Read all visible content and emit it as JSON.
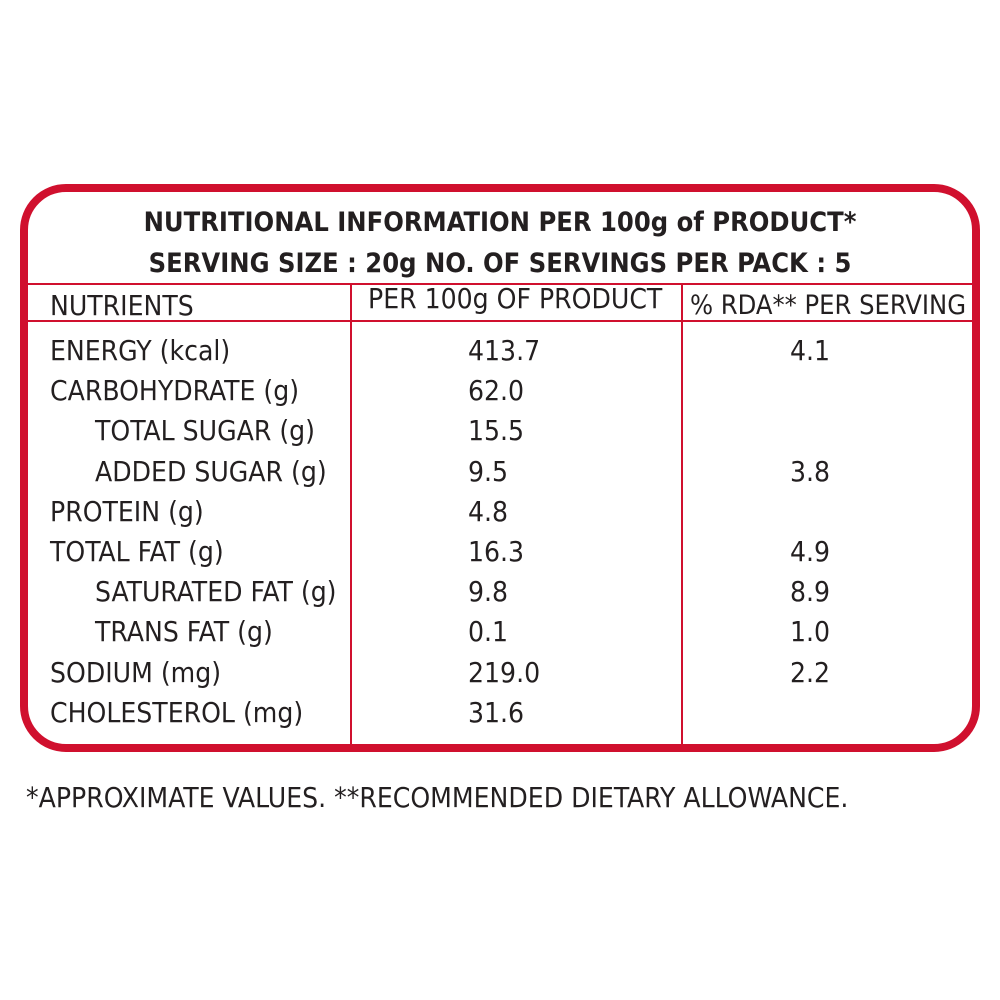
{
  "header": {
    "line1": "NUTRITIONAL INFORMATION PER 100g of PRODUCT*",
    "line2": "SERVING SIZE : 20g  NO. OF SERVINGS PER PACK : 5"
  },
  "columns": {
    "nutrients": "NUTRIENTS",
    "per100g": "PER 100g OF PRODUCT",
    "rda": "% RDA** PER SERVING"
  },
  "rows": [
    {
      "name": "ENERGY (kcal)",
      "per100g": "413.7",
      "rda": "4.1",
      "indent": false
    },
    {
      "name": "CARBOHYDRATE (g)",
      "per100g": "62.0",
      "rda": "",
      "indent": false
    },
    {
      "name": "TOTAL SUGAR (g)",
      "per100g": "15.5",
      "rda": "",
      "indent": true
    },
    {
      "name": "ADDED SUGAR (g)",
      "per100g": "9.5",
      "rda": "3.8",
      "indent": true
    },
    {
      "name": "PROTEIN (g)",
      "per100g": "4.8",
      "rda": "",
      "indent": false
    },
    {
      "name": "TOTAL FAT (g)",
      "per100g": "16.3",
      "rda": "4.9",
      "indent": false
    },
    {
      "name": "SATURATED FAT (g)",
      "per100g": "9.8",
      "rda": "8.9",
      "indent": true
    },
    {
      "name": "TRANS FAT (g)",
      "per100g": "0.1",
      "rda": "1.0",
      "indent": true
    },
    {
      "name": "SODIUM (mg)",
      "per100g": "219.0",
      "rda": "2.2",
      "indent": false
    },
    {
      "name": "CHOLESTEROL (mg)",
      "per100g": "31.6",
      "rda": "",
      "indent": false
    }
  ],
  "footnote": "*APPROXIMATE VALUES.  **RECOMMENDED DIETARY ALLOWANCE.",
  "colors": {
    "border": "#d0102e",
    "text": "#231f20"
  }
}
